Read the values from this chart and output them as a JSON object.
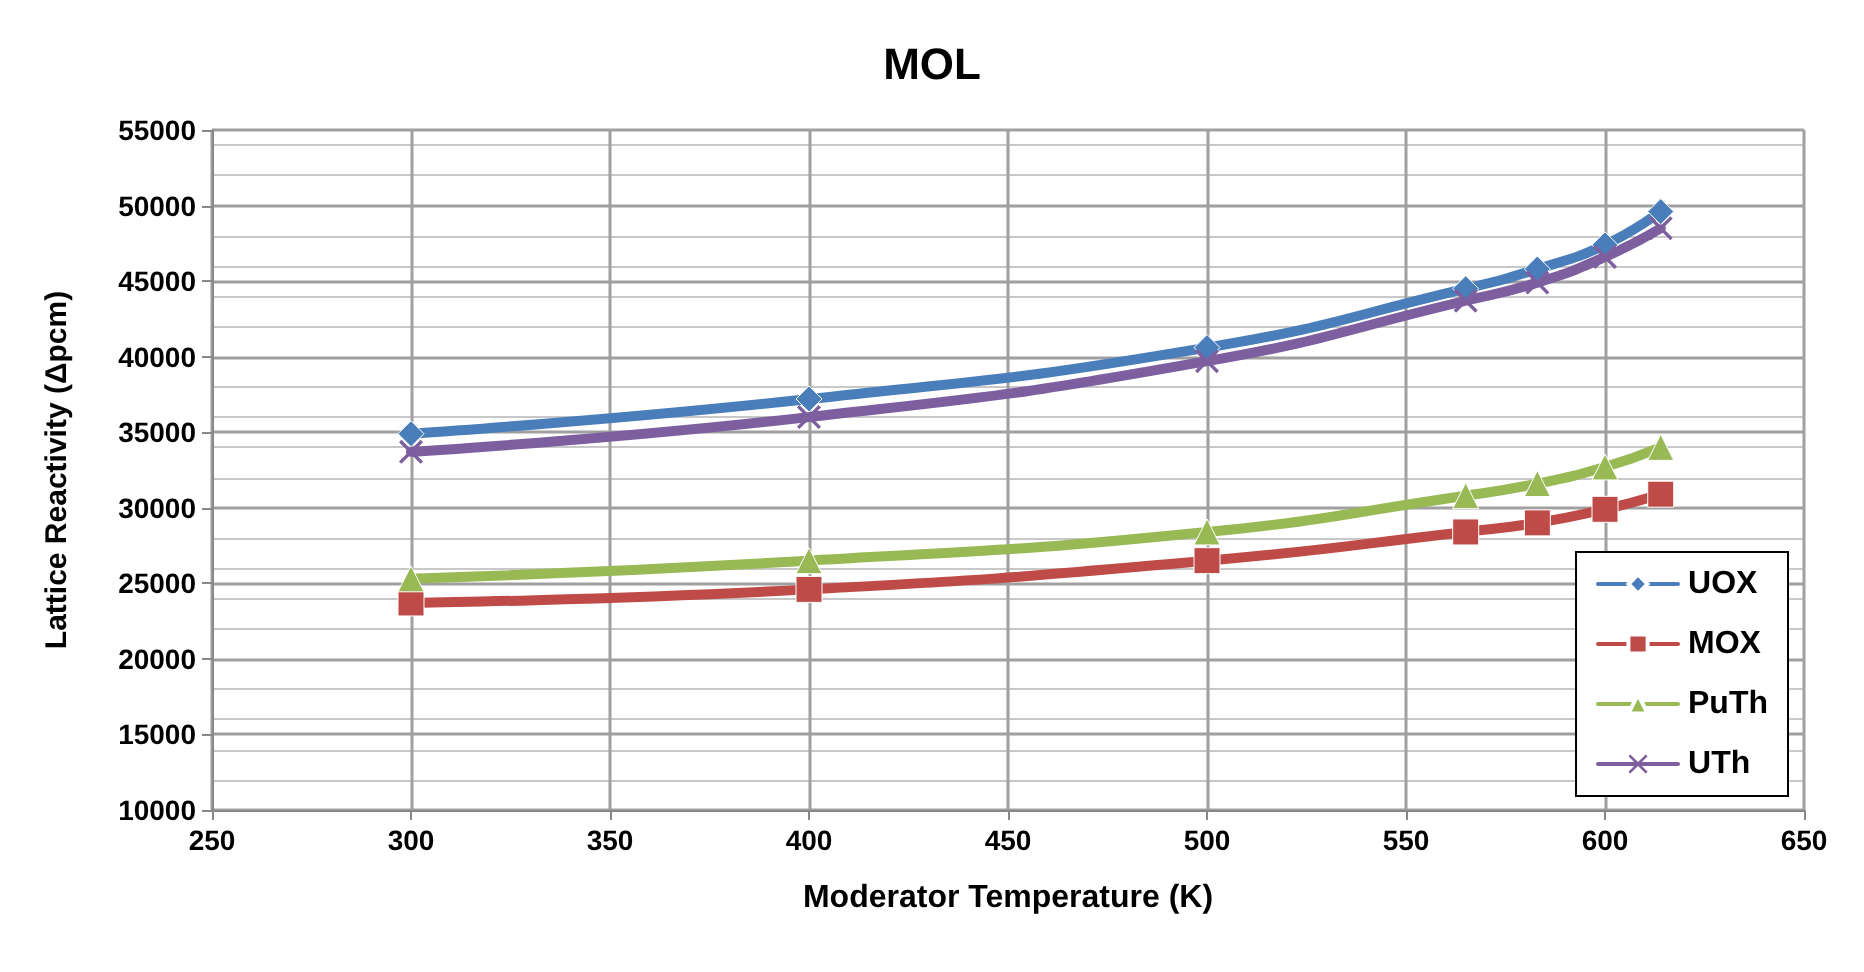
{
  "chart_data": {
    "type": "line",
    "title": "MOL",
    "xlabel": "Moderator Temperature (K)",
    "ylabel": "Lattice Reactivity (Δpcm)",
    "x": [
      300,
      400,
      500,
      565,
      583,
      600,
      614
    ],
    "series": [
      {
        "name": "UOX",
        "color": "#4a7ebb",
        "marker": "diamond",
        "values": [
          34900,
          37200,
          40600,
          44500,
          45800,
          47400,
          49600
        ]
      },
      {
        "name": "MOX",
        "color": "#be4b48",
        "marker": "square",
        "values": [
          23700,
          24600,
          26500,
          28400,
          29000,
          29900,
          30900
        ]
      },
      {
        "name": "PuTh",
        "color": "#98b954",
        "marker": "triangle",
        "values": [
          25300,
          26500,
          28400,
          30800,
          31600,
          32700,
          34000
        ]
      },
      {
        "name": "UTh",
        "color": "#7d5fa0",
        "marker": "cross",
        "values": [
          33700,
          36000,
          39700,
          43700,
          44900,
          46600,
          48500
        ]
      }
    ],
    "xlim": [
      250,
      650
    ],
    "xticks": [
      250,
      300,
      350,
      400,
      450,
      500,
      550,
      600,
      650
    ],
    "ylim": [
      10000,
      55000
    ],
    "yticks": [
      10000,
      15000,
      20000,
      25000,
      30000,
      35000,
      40000,
      45000,
      50000,
      55000
    ],
    "grid": true,
    "legend": "bottom right",
    "line_style": "solid"
  }
}
